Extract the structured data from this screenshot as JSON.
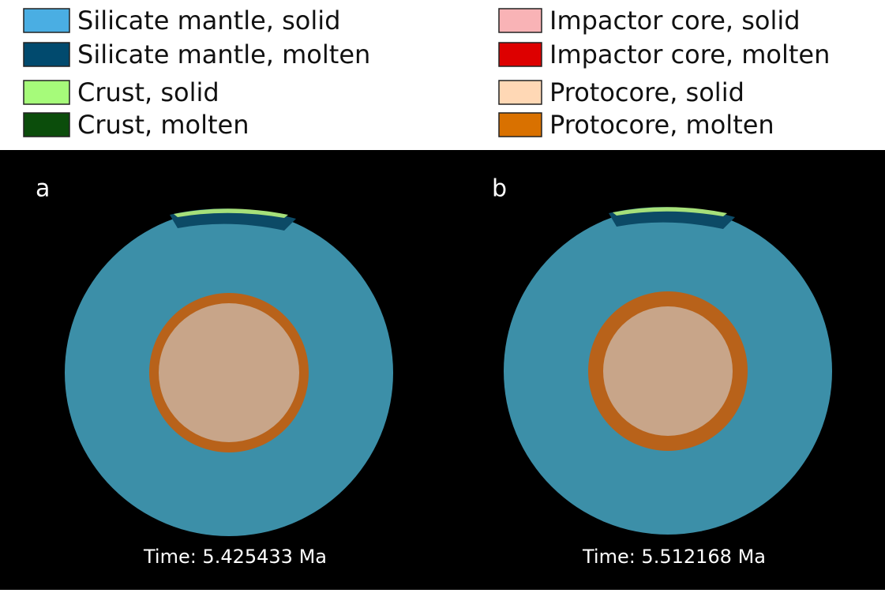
{
  "legend": [
    {
      "label": "Silicate mantle, solid",
      "color": "#4aaee3"
    },
    {
      "label": "Silicate mantle, molten",
      "color": "#014a6e"
    },
    {
      "label": "Crust, solid",
      "color": "#a6fb7a"
    },
    {
      "label": "Crust, molten",
      "color": "#0b4d0b"
    },
    {
      "label": "Impactor core, solid",
      "color": "#f9b3b6"
    },
    {
      "label": "Impactor core, molten",
      "color": "#dd0000"
    },
    {
      "label": "Protocore, solid",
      "color": "#ffd8b5"
    },
    {
      "label": "Protocore, molten",
      "color": "#d97100"
    }
  ],
  "panels": [
    {
      "label": "a",
      "time": "Time: 5.425433  Ma"
    },
    {
      "label": "b",
      "time": "Time: 5.512168 Ma"
    }
  ]
}
